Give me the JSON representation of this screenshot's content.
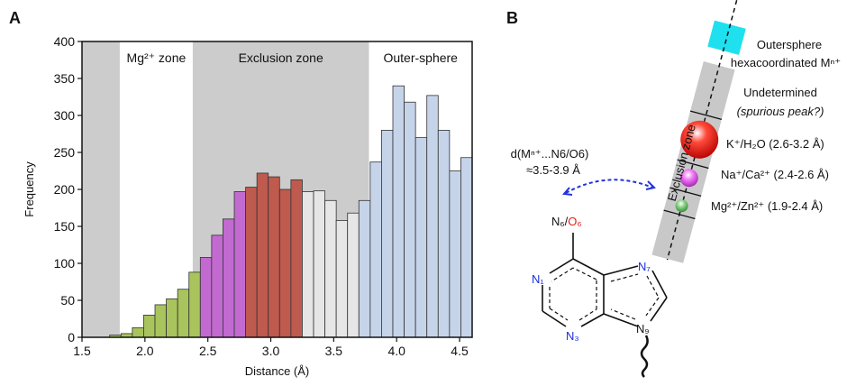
{
  "panels": [
    "A",
    "B"
  ],
  "chart_data": {
    "type": "histogram",
    "xlabel": "Distance (Å)",
    "ylabel": "Frequency",
    "bins": [
      1.72,
      1.81,
      1.9,
      1.99,
      2.08,
      2.17,
      2.26,
      2.35,
      2.44,
      2.53,
      2.62,
      2.71,
      2.8,
      2.89,
      2.98,
      3.07,
      3.16,
      3.25,
      3.34,
      3.43,
      3.52,
      3.61,
      3.7,
      3.79,
      3.88,
      3.97,
      4.06,
      4.15,
      4.24,
      4.33,
      4.42,
      4.51,
      4.6
    ],
    "values": [
      3,
      5,
      13,
      30,
      44,
      52,
      65,
      88,
      108,
      138,
      160,
      197,
      203,
      222,
      217,
      200,
      213,
      197,
      198,
      185,
      158,
      168,
      185,
      237,
      280,
      340,
      318,
      270,
      327,
      280,
      225,
      243
    ],
    "colors": [
      "#a9c45c",
      "#a9c45c",
      "#a9c45c",
      "#a9c45c",
      "#a9c45c",
      "#a9c45c",
      "#a9c45c",
      "#a9c45c",
      "#c26ad0",
      "#c26ad0",
      "#c26ad0",
      "#c26ad0",
      "#bf5a4e",
      "#bf5a4e",
      "#bf5a4e",
      "#bf5a4e",
      "#bf5a4e",
      "#e6e6e6",
      "#e6e6e6",
      "#e6e6e6",
      "#e6e6e6",
      "#e6e6e6",
      "#c6d4ea",
      "#c6d4ea",
      "#c6d4ea",
      "#c6d4ea",
      "#c6d4ea",
      "#c6d4ea",
      "#c6d4ea",
      "#c6d4ea",
      "#c6d4ea",
      "#c6d4ea"
    ],
    "zones": [
      {
        "label": null,
        "range": [
          1.5,
          1.8
        ],
        "shaded": true
      },
      {
        "label": "Mg²⁺ zone",
        "range": [
          1.8,
          2.38
        ],
        "shaded": false
      },
      {
        "label": "Exclusion zone",
        "range": [
          2.38,
          3.78
        ],
        "shaded": true
      },
      {
        "label": "Outer-sphere",
        "range": [
          3.78,
          4.6
        ],
        "shaded": false
      }
    ],
    "zone_color": "#cccccc",
    "xlim": [
      1.5,
      4.6
    ],
    "ylim": [
      0,
      400
    ],
    "xticks": [
      1.5,
      {
        "value": 2,
        "label": "2.0"
      },
      2.5,
      {
        "value": 3,
        "label": "3.0"
      },
      3.5,
      {
        "value": 4,
        "label": "4.0"
      },
      4.5
    ],
    "yticks": [
      0,
      50,
      100,
      150,
      200,
      250,
      300,
      350,
      400
    ]
  },
  "diagram": {
    "outersphere": [
      "Outersphere",
      "hexacoordinated Mⁿ⁺"
    ],
    "undetermined": [
      "Undetermined",
      "(spurious peak?)"
    ],
    "k_label": "K⁺/H₂O (2.6-3.2 Å)",
    "na_label": "Na⁺/Ca²⁺ (2.4-2.6 Å)",
    "mg_label": "Mg²⁺/Zn²⁺ (1.9-2.4 Å)",
    "zone_label": "Exclusion zone",
    "distance": [
      "d(Mⁿ⁺...N6/O6)",
      "≈3.5-3.9 Å"
    ],
    "atoms": {
      "N1": "N₁",
      "N3": "N₃",
      "N7": "N₇",
      "N9": "N₉",
      "N6": "N₆",
      "sep": "/",
      "O6": "O₆"
    }
  }
}
